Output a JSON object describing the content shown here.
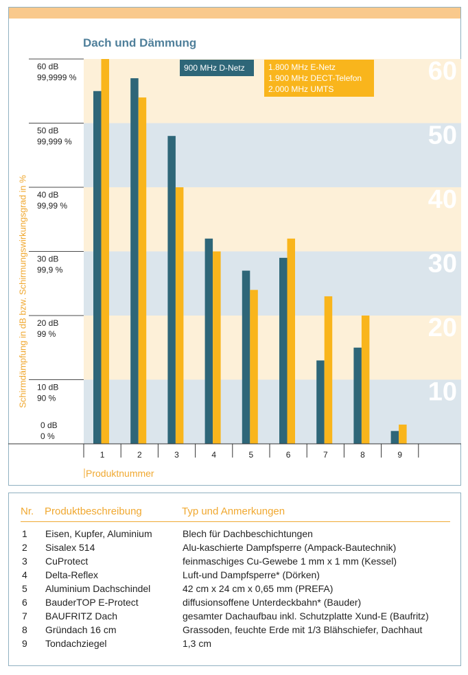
{
  "chart_data": {
    "type": "bar",
    "title": "Dach und Dämmung",
    "ylabel": "Schirmdämpfung in dB bzw. Schirmungswirkungsgrad in %",
    "xlabel": "Produktnummer",
    "ylim": [
      0,
      60
    ],
    "categories": [
      "1",
      "2",
      "3",
      "4",
      "5",
      "6",
      "7",
      "8",
      "9"
    ],
    "y_ticks": [
      {
        "db": "60 dB",
        "pct": "99,9999 %"
      },
      {
        "db": "50 dB",
        "pct": "99,999 %"
      },
      {
        "db": "40 dB",
        "pct": "99,99 %"
      },
      {
        "db": "30 dB",
        "pct": "99,9 %"
      },
      {
        "db": "20 dB",
        "pct": "99 %"
      },
      {
        "db": "10 dB",
        "pct": "90 %"
      },
      {
        "db": "0 dB",
        "pct": "0 %"
      }
    ],
    "band_labels": [
      "60",
      "50",
      "40",
      "30",
      "20",
      "10"
    ],
    "series": [
      {
        "name": "900 MHz D-Netz",
        "color": "#2e6678",
        "values": [
          55,
          57,
          48,
          32,
          27,
          29,
          13,
          15,
          2
        ]
      },
      {
        "name": "1.800 MHz E-Netz / 1.900 MHz DECT-Telefon / 2.000 MHz UMTS",
        "color": "#f9b51c",
        "values": [
          60,
          54,
          40,
          30,
          24,
          32,
          23,
          20,
          3
        ]
      }
    ],
    "legend": {
      "d_netz": "900 MHz D-Netz",
      "e_netz": [
        "1.800 MHz E-Netz",
        "1.900 MHz DECT-Telefon",
        "2.000 MHz UMTS"
      ]
    },
    "band_colors": {
      "light": "#fdf0d8",
      "blue": "#dbe5ec",
      "band_number": "#ffffff"
    }
  },
  "table": {
    "headers": {
      "nr": "Nr.",
      "desc": "Produktbeschreibung",
      "type": "Typ und Anmerkungen"
    },
    "rows": [
      {
        "nr": "1",
        "desc": "Eisen, Kupfer, Aluminium",
        "type": "Blech für Dachbeschichtungen"
      },
      {
        "nr": "2",
        "desc": "Sisalex 514",
        "type": "Alu-kaschierte Dampfsperre (Ampack-Bautechnik)"
      },
      {
        "nr": "3",
        "desc": "CuProtect",
        "type": "feinmaschiges Cu-Gewebe 1 mm x 1 mm (Kessel)"
      },
      {
        "nr": "4",
        "desc": "Delta-Reflex",
        "type": "Luft-und Dampfsperre* (Dörken)"
      },
      {
        "nr": "5",
        "desc": "Aluminium Dachschindel",
        "type": "42 cm x 24 cm x 0,65 mm (PREFA)"
      },
      {
        "nr": "6",
        "desc": "BauderTOP E-Protect",
        "type": "diffusionsoffene Unterdeckbahn* (Bauder)"
      },
      {
        "nr": "7",
        "desc": "BAUFRITZ Dach",
        "type": "gesamter Dachaufbau inkl. Schutzplatte Xund-E (Baufritz)"
      },
      {
        "nr": "8",
        "desc": "Gründach 16 cm",
        "type": "Grassoden, feuchte Erde mit 1/3 Blähschiefer, Dachhaut"
      },
      {
        "nr": "9",
        "desc": "Tondachziegel",
        "type": "1,3 cm"
      }
    ]
  }
}
